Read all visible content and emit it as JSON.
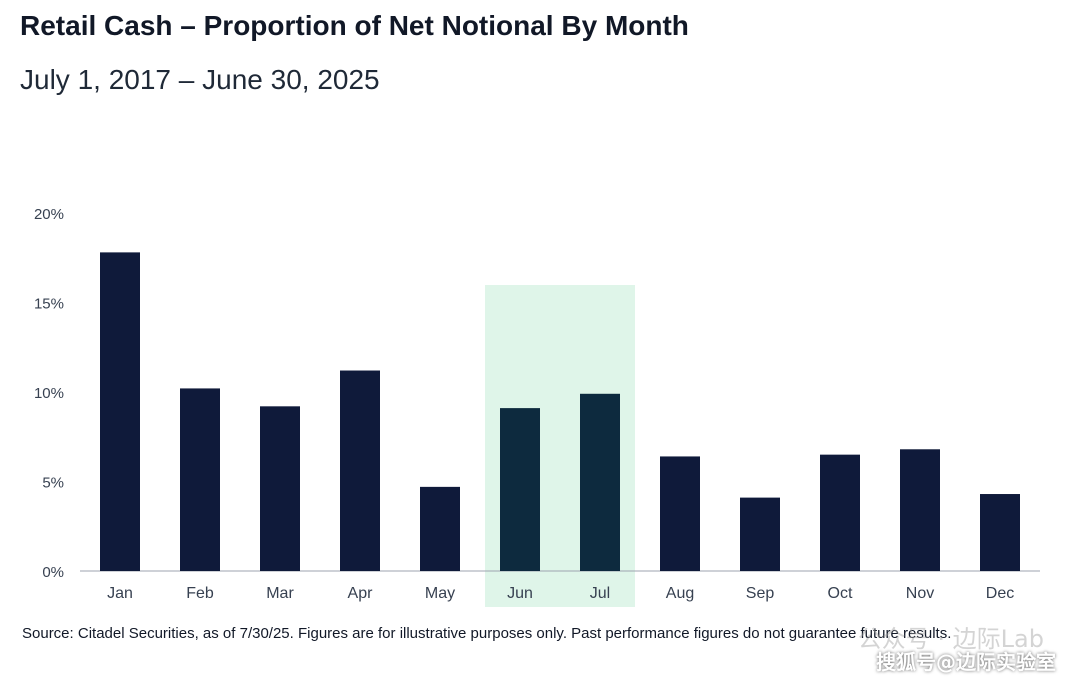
{
  "title": "Retail Cash – Proportion of Net Notional By Month",
  "subtitle": "July 1, 2017 – June 30, 2025",
  "source": "Source: Citadel Securities, as of 7/30/25. Figures are for illustrative purposes only. Past performance figures do not guarantee future results.",
  "watermark": "搜狐号@边际实验室",
  "watermark_faint": "公众号 · 边际Lab",
  "colors": {
    "bar": "#0f1a3a",
    "bar_highlight": "#0d2a3e",
    "highlight_band": "#dff5e9",
    "axis": "#9ca3af",
    "text": "#111827"
  },
  "chart_data": {
    "type": "bar",
    "categories": [
      "Jan",
      "Feb",
      "Mar",
      "Apr",
      "May",
      "Jun",
      "Jul",
      "Aug",
      "Sep",
      "Oct",
      "Nov",
      "Dec"
    ],
    "values": [
      17.8,
      10.2,
      9.2,
      11.2,
      4.7,
      9.1,
      9.9,
      6.4,
      4.1,
      6.5,
      6.8,
      4.3
    ],
    "unit": "%",
    "ylim": [
      0,
      20
    ],
    "yticks": [
      "0%",
      "5%",
      "10%",
      "15%",
      "20%"
    ],
    "highlighted_categories": [
      "Jun",
      "Jul"
    ],
    "grid": false,
    "legend": "none"
  }
}
